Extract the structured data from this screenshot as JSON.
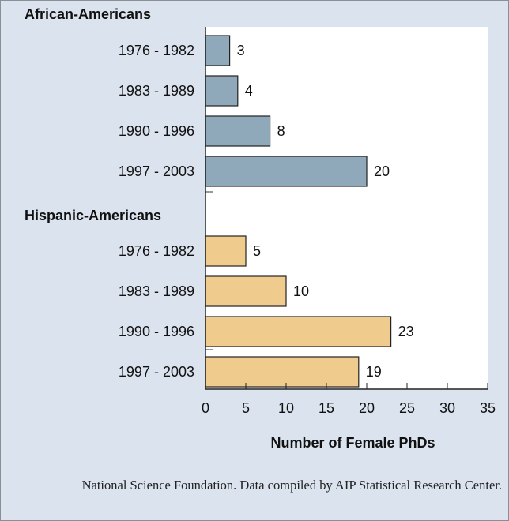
{
  "chart_data": {
    "type": "bar",
    "orientation": "horizontal",
    "xlabel": "Number of Female PhDs",
    "xlim": [
      0,
      35
    ],
    "xticks": [
      "0",
      "5",
      "10",
      "15",
      "20",
      "25",
      "30",
      "35"
    ],
    "groups": [
      {
        "name": "African-Americans",
        "color": "#8fa9ba",
        "categories": [
          "1976 - 1982",
          "1983 - 1989",
          "1990 - 1996",
          "1997 - 2003"
        ],
        "values": [
          3,
          4,
          8,
          20
        ]
      },
      {
        "name": "Hispanic-Americans",
        "color": "#efcb8d",
        "categories": [
          "1976 - 1982",
          "1983 - 1989",
          "1990 - 1996",
          "1997 - 2003"
        ],
        "values": [
          5,
          10,
          23,
          19
        ]
      }
    ]
  },
  "source": "National Science Foundation. Data compiled by AIP Statistical Research Center."
}
